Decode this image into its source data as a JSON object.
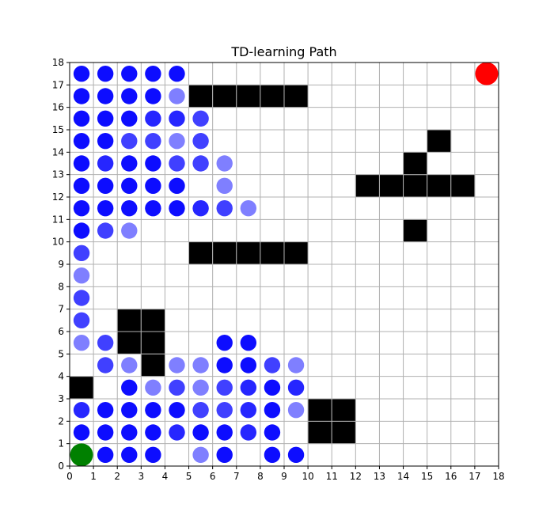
{
  "chart_data": {
    "type": "scatter",
    "title": "TD-learning Path",
    "xlabel": "",
    "ylabel": "",
    "xlim": [
      0,
      18
    ],
    "ylim": [
      0,
      18
    ],
    "grid": true,
    "x_ticks": [
      "0",
      "1",
      "2",
      "3",
      "4",
      "5",
      "6",
      "7",
      "8",
      "9",
      "10",
      "11",
      "12",
      "13",
      "14",
      "15",
      "16",
      "17",
      "18"
    ],
    "y_ticks": [
      "0",
      "1",
      "2",
      "3",
      "4",
      "5",
      "6",
      "7",
      "8",
      "9",
      "10",
      "11",
      "12",
      "13",
      "14",
      "15",
      "16",
      "17",
      "18"
    ],
    "obstacles": [
      [
        0,
        3
      ],
      [
        2,
        5
      ],
      [
        3,
        5
      ],
      [
        2,
        6
      ],
      [
        3,
        6
      ],
      [
        3,
        4
      ],
      [
        5,
        9
      ],
      [
        6,
        9
      ],
      [
        7,
        9
      ],
      [
        8,
        9
      ],
      [
        9,
        9
      ],
      [
        5,
        16
      ],
      [
        6,
        16
      ],
      [
        7,
        16
      ],
      [
        8,
        16
      ],
      [
        9,
        16
      ],
      [
        10,
        1
      ],
      [
        11,
        1
      ],
      [
        10,
        2
      ],
      [
        11,
        2
      ],
      [
        12,
        12
      ],
      [
        13,
        12
      ],
      [
        14,
        12
      ],
      [
        15,
        12
      ],
      [
        16,
        12
      ],
      [
        14,
        13
      ],
      [
        15,
        14
      ],
      [
        14,
        10
      ]
    ],
    "start": [
      0.5,
      0.5
    ],
    "goal": [
      17.5,
      17.5
    ],
    "path_visits": [
      {
        "x": 0.5,
        "y": 17.5,
        "a": 0.95
      },
      {
        "x": 1.5,
        "y": 17.5,
        "a": 0.95
      },
      {
        "x": 2.5,
        "y": 17.5,
        "a": 0.95
      },
      {
        "x": 3.5,
        "y": 17.5,
        "a": 0.95
      },
      {
        "x": 4.5,
        "y": 17.5,
        "a": 0.95
      },
      {
        "x": 0.5,
        "y": 16.5,
        "a": 0.95
      },
      {
        "x": 1.5,
        "y": 16.5,
        "a": 0.95
      },
      {
        "x": 2.5,
        "y": 16.5,
        "a": 0.95
      },
      {
        "x": 3.5,
        "y": 16.5,
        "a": 0.95
      },
      {
        "x": 4.5,
        "y": 16.5,
        "a": 0.5
      },
      {
        "x": 0.5,
        "y": 15.5,
        "a": 0.95
      },
      {
        "x": 1.5,
        "y": 15.5,
        "a": 0.95
      },
      {
        "x": 2.5,
        "y": 15.5,
        "a": 0.95
      },
      {
        "x": 3.5,
        "y": 15.5,
        "a": 0.85
      },
      {
        "x": 4.5,
        "y": 15.5,
        "a": 0.85
      },
      {
        "x": 5.5,
        "y": 15.5,
        "a": 0.75
      },
      {
        "x": 0.5,
        "y": 14.5,
        "a": 0.95
      },
      {
        "x": 1.5,
        "y": 14.5,
        "a": 0.95
      },
      {
        "x": 2.5,
        "y": 14.5,
        "a": 0.75
      },
      {
        "x": 3.5,
        "y": 14.5,
        "a": 0.75
      },
      {
        "x": 4.5,
        "y": 14.5,
        "a": 0.5
      },
      {
        "x": 5.5,
        "y": 14.5,
        "a": 0.75
      },
      {
        "x": 0.5,
        "y": 13.5,
        "a": 0.95
      },
      {
        "x": 1.5,
        "y": 13.5,
        "a": 0.85
      },
      {
        "x": 2.5,
        "y": 13.5,
        "a": 0.95
      },
      {
        "x": 3.5,
        "y": 13.5,
        "a": 0.95
      },
      {
        "x": 4.5,
        "y": 13.5,
        "a": 0.75
      },
      {
        "x": 5.5,
        "y": 13.5,
        "a": 0.75
      },
      {
        "x": 6.5,
        "y": 13.5,
        "a": 0.5
      },
      {
        "x": 0.5,
        "y": 12.5,
        "a": 0.95
      },
      {
        "x": 1.5,
        "y": 12.5,
        "a": 0.95
      },
      {
        "x": 2.5,
        "y": 12.5,
        "a": 0.95
      },
      {
        "x": 3.5,
        "y": 12.5,
        "a": 0.95
      },
      {
        "x": 4.5,
        "y": 12.5,
        "a": 0.95
      },
      {
        "x": 6.5,
        "y": 12.5,
        "a": 0.5
      },
      {
        "x": 0.5,
        "y": 11.5,
        "a": 0.95
      },
      {
        "x": 1.5,
        "y": 11.5,
        "a": 0.95
      },
      {
        "x": 2.5,
        "y": 11.5,
        "a": 0.95
      },
      {
        "x": 3.5,
        "y": 11.5,
        "a": 0.95
      },
      {
        "x": 4.5,
        "y": 11.5,
        "a": 0.95
      },
      {
        "x": 5.5,
        "y": 11.5,
        "a": 0.85
      },
      {
        "x": 6.5,
        "y": 11.5,
        "a": 0.75
      },
      {
        "x": 7.5,
        "y": 11.5,
        "a": 0.5
      },
      {
        "x": 0.5,
        "y": 10.5,
        "a": 0.95
      },
      {
        "x": 1.5,
        "y": 10.5,
        "a": 0.75
      },
      {
        "x": 2.5,
        "y": 10.5,
        "a": 0.5
      },
      {
        "x": 0.5,
        "y": 9.5,
        "a": 0.75
      },
      {
        "x": 0.5,
        "y": 8.5,
        "a": 0.5
      },
      {
        "x": 0.5,
        "y": 7.5,
        "a": 0.75
      },
      {
        "x": 0.5,
        "y": 6.5,
        "a": 0.75
      },
      {
        "x": 0.5,
        "y": 5.5,
        "a": 0.5
      },
      {
        "x": 1.5,
        "y": 5.5,
        "a": 0.75
      },
      {
        "x": 6.5,
        "y": 5.5,
        "a": 0.95
      },
      {
        "x": 7.5,
        "y": 5.5,
        "a": 0.95
      },
      {
        "x": 1.5,
        "y": 4.5,
        "a": 0.75
      },
      {
        "x": 2.5,
        "y": 4.5,
        "a": 0.5
      },
      {
        "x": 4.5,
        "y": 4.5,
        "a": 0.5
      },
      {
        "x": 5.5,
        "y": 4.5,
        "a": 0.5
      },
      {
        "x": 6.5,
        "y": 4.5,
        "a": 0.95
      },
      {
        "x": 7.5,
        "y": 4.5,
        "a": 0.95
      },
      {
        "x": 8.5,
        "y": 4.5,
        "a": 0.75
      },
      {
        "x": 9.5,
        "y": 4.5,
        "a": 0.5
      },
      {
        "x": 2.5,
        "y": 3.5,
        "a": 0.95
      },
      {
        "x": 3.5,
        "y": 3.5,
        "a": 0.5
      },
      {
        "x": 4.5,
        "y": 3.5,
        "a": 0.75
      },
      {
        "x": 5.5,
        "y": 3.5,
        "a": 0.5
      },
      {
        "x": 6.5,
        "y": 3.5,
        "a": 0.75
      },
      {
        "x": 7.5,
        "y": 3.5,
        "a": 0.85
      },
      {
        "x": 8.5,
        "y": 3.5,
        "a": 0.95
      },
      {
        "x": 9.5,
        "y": 3.5,
        "a": 0.85
      },
      {
        "x": 0.5,
        "y": 2.5,
        "a": 0.85
      },
      {
        "x": 1.5,
        "y": 2.5,
        "a": 0.95
      },
      {
        "x": 2.5,
        "y": 2.5,
        "a": 0.95
      },
      {
        "x": 3.5,
        "y": 2.5,
        "a": 0.95
      },
      {
        "x": 4.5,
        "y": 2.5,
        "a": 0.95
      },
      {
        "x": 5.5,
        "y": 2.5,
        "a": 0.75
      },
      {
        "x": 6.5,
        "y": 2.5,
        "a": 0.75
      },
      {
        "x": 7.5,
        "y": 2.5,
        "a": 0.85
      },
      {
        "x": 8.5,
        "y": 2.5,
        "a": 0.95
      },
      {
        "x": 9.5,
        "y": 2.5,
        "a": 0.5
      },
      {
        "x": 0.5,
        "y": 1.5,
        "a": 0.95
      },
      {
        "x": 1.5,
        "y": 1.5,
        "a": 0.95
      },
      {
        "x": 2.5,
        "y": 1.5,
        "a": 0.95
      },
      {
        "x": 3.5,
        "y": 1.5,
        "a": 0.95
      },
      {
        "x": 4.5,
        "y": 1.5,
        "a": 0.85
      },
      {
        "x": 5.5,
        "y": 1.5,
        "a": 0.95
      },
      {
        "x": 6.5,
        "y": 1.5,
        "a": 0.95
      },
      {
        "x": 7.5,
        "y": 1.5,
        "a": 0.85
      },
      {
        "x": 8.5,
        "y": 1.5,
        "a": 0.95
      },
      {
        "x": 1.5,
        "y": 0.5,
        "a": 0.95
      },
      {
        "x": 2.5,
        "y": 0.5,
        "a": 0.95
      },
      {
        "x": 3.5,
        "y": 0.5,
        "a": 0.95
      },
      {
        "x": 5.5,
        "y": 0.5,
        "a": 0.5
      },
      {
        "x": 6.5,
        "y": 0.5,
        "a": 0.95
      },
      {
        "x": 8.5,
        "y": 0.5,
        "a": 0.95
      },
      {
        "x": 9.5,
        "y": 0.5,
        "a": 0.95
      }
    ],
    "colors": {
      "path": "#0000ff",
      "start": "#008000",
      "goal": "#ff0000",
      "obstacle": "#000000",
      "grid": "#b0b0b0"
    }
  }
}
